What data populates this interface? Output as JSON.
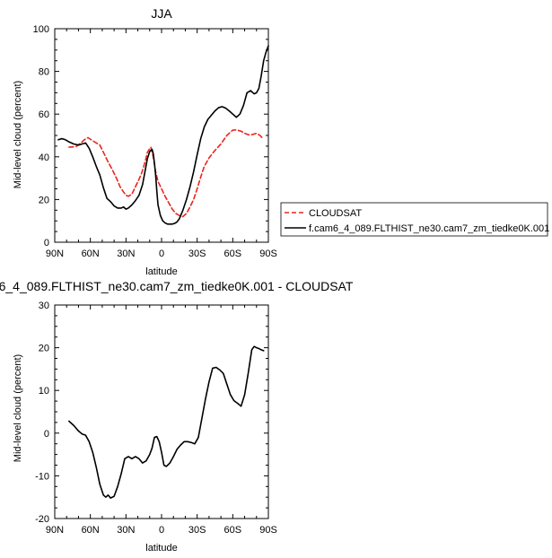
{
  "chart_data": [
    {
      "type": "line",
      "title": "JJA",
      "xlabel": "latitude",
      "ylabel": "Mid-level cloud (percent)",
      "xlim": [
        -90,
        90
      ],
      "ylim": [
        0,
        100
      ],
      "xticks": [
        -90,
        -60,
        -30,
        0,
        30,
        60,
        90
      ],
      "xticklabels": [
        "90N",
        "60N",
        "30N",
        "0",
        "30S",
        "60S",
        "90S"
      ],
      "yticks": [
        0,
        20,
        40,
        60,
        80,
        100
      ],
      "yticklabels": [
        "0",
        "20",
        "40",
        "60",
        "80",
        "100"
      ],
      "legend": {
        "placement": "right",
        "entries": [
          "CLOUDSAT",
          "f.cam6_4_089.FLTHIST_ne30.cam7_zm_tiedke0K.001"
        ]
      },
      "series": [
        {
          "name": "CLOUDSAT",
          "color": "#e8261f",
          "dash": true,
          "x": [
            -78,
            -72,
            -68,
            -65,
            -62,
            -58,
            -55,
            -52,
            -48,
            -45,
            -42,
            -38,
            -35,
            -32,
            -30,
            -28,
            -25,
            -22,
            -19,
            -17,
            -15,
            -13,
            -12,
            -11,
            -9,
            -7,
            -5,
            -3,
            0,
            3,
            6,
            9,
            12,
            15,
            18,
            21,
            24,
            27,
            30,
            33,
            36,
            40,
            45,
            50,
            55,
            60,
            63,
            67,
            71,
            74,
            77,
            80,
            83,
            85
          ],
          "y": [
            44.5,
            44.8,
            46.5,
            48,
            49,
            47.5,
            46.5,
            45.5,
            41,
            37.5,
            34.5,
            30,
            26,
            23.5,
            22,
            21.5,
            22.5,
            26,
            29.5,
            32,
            35.5,
            39.5,
            42,
            43,
            44.5,
            40,
            33,
            28.5,
            25,
            21.5,
            18.5,
            15.5,
            13.5,
            12.5,
            12,
            13.5,
            16.5,
            20,
            25,
            30.5,
            35.5,
            39.5,
            43,
            46,
            50,
            52.5,
            52.6,
            52,
            50.8,
            50.2,
            50.5,
            51,
            50,
            48.8
          ]
        },
        {
          "name": "f.cam6_4_089.FLTHIST_ne30.cam7_zm_tiedke0K.001",
          "color": "#000000",
          "dash": false,
          "x": [
            -87,
            -84,
            -81,
            -78,
            -74,
            -70,
            -67,
            -64,
            -61,
            -58,
            -55,
            -52,
            -49,
            -46,
            -43,
            -40,
            -37,
            -34,
            -32,
            -30,
            -28,
            -25,
            -22,
            -19,
            -16,
            -14,
            -12,
            -10,
            -8,
            -7,
            -6,
            -5,
            -4,
            -3,
            -1,
            1,
            3,
            5,
            7,
            9,
            11,
            13,
            15,
            18,
            21,
            24,
            27,
            30,
            33,
            36,
            39,
            42,
            45,
            48,
            51,
            54,
            57,
            60,
            63,
            66,
            69,
            72,
            75,
            78,
            80,
            82,
            84,
            86,
            88,
            90
          ],
          "y": [
            48,
            48.5,
            48,
            47,
            46,
            45.5,
            46,
            46.5,
            44,
            40,
            35.5,
            31.5,
            25.5,
            20.5,
            19,
            17,
            16,
            16,
            16.5,
            15.5,
            16,
            17.5,
            19.5,
            22,
            27,
            33,
            39,
            42.5,
            43.5,
            41.5,
            37,
            31.5,
            24,
            17.5,
            12.5,
            10,
            9,
            8.5,
            8.5,
            8.5,
            8.8,
            9.5,
            11,
            15,
            20,
            26,
            33,
            41,
            48.5,
            54,
            57.5,
            59.5,
            61.5,
            63,
            63.5,
            62.8,
            61.5,
            60,
            58.5,
            60,
            64,
            70,
            71,
            69.5,
            70,
            72,
            78,
            85,
            89,
            92
          ]
        }
      ]
    },
    {
      "type": "line",
      "title": "6_4_089.FLTHIST_ne30.cam7_zm_tiedke0K.001 - CLOUDSAT",
      "xlabel": "latitude",
      "ylabel": "Mid-level cloud (percent)",
      "xlim": [
        -90,
        90
      ],
      "ylim": [
        -20,
        30
      ],
      "xticks": [
        -90,
        -60,
        -30,
        0,
        30,
        60,
        90
      ],
      "xticklabels": [
        "90N",
        "60N",
        "30N",
        "0",
        "30S",
        "60S",
        "90S"
      ],
      "yticks": [
        -20,
        -10,
        0,
        10,
        20,
        30
      ],
      "yticklabels": [
        "-20",
        "-10",
        "0",
        "10",
        "20",
        "30"
      ],
      "series": [
        {
          "color": "#000000",
          "dash": false,
          "x": [
            -78,
            -74,
            -70,
            -67,
            -64,
            -61,
            -58,
            -55,
            -52,
            -49,
            -47,
            -45,
            -43,
            -40,
            -37,
            -34,
            -31,
            -28,
            -25,
            -22,
            -19,
            -16,
            -13,
            -10,
            -8,
            -6,
            -4,
            -2,
            0,
            2,
            4,
            7,
            10,
            13,
            16,
            19,
            22,
            25,
            28,
            31,
            34,
            37,
            40,
            43,
            46,
            49,
            52,
            55,
            58,
            61,
            64,
            67,
            70,
            73,
            76,
            78,
            80,
            82,
            84,
            86
          ],
          "y": [
            2.8,
            1.8,
            0.5,
            -0.2,
            -0.5,
            -2,
            -4.5,
            -8,
            -12,
            -14.5,
            -15,
            -14.5,
            -15.2,
            -14.8,
            -12.5,
            -9.5,
            -6,
            -5.5,
            -6,
            -5.5,
            -6,
            -7,
            -6.5,
            -5,
            -3.5,
            -1,
            -0.8,
            -2,
            -4.5,
            -7.5,
            -7.8,
            -7,
            -5.5,
            -3.8,
            -2.8,
            -2,
            -2,
            -2.2,
            -2.5,
            -1,
            3.5,
            8,
            12,
            15.2,
            15.4,
            14.8,
            14,
            11.5,
            9,
            7.6,
            7,
            6.3,
            9,
            14,
            19.5,
            20.3,
            20,
            19.8,
            19.5,
            19.3
          ]
        }
      ]
    }
  ]
}
